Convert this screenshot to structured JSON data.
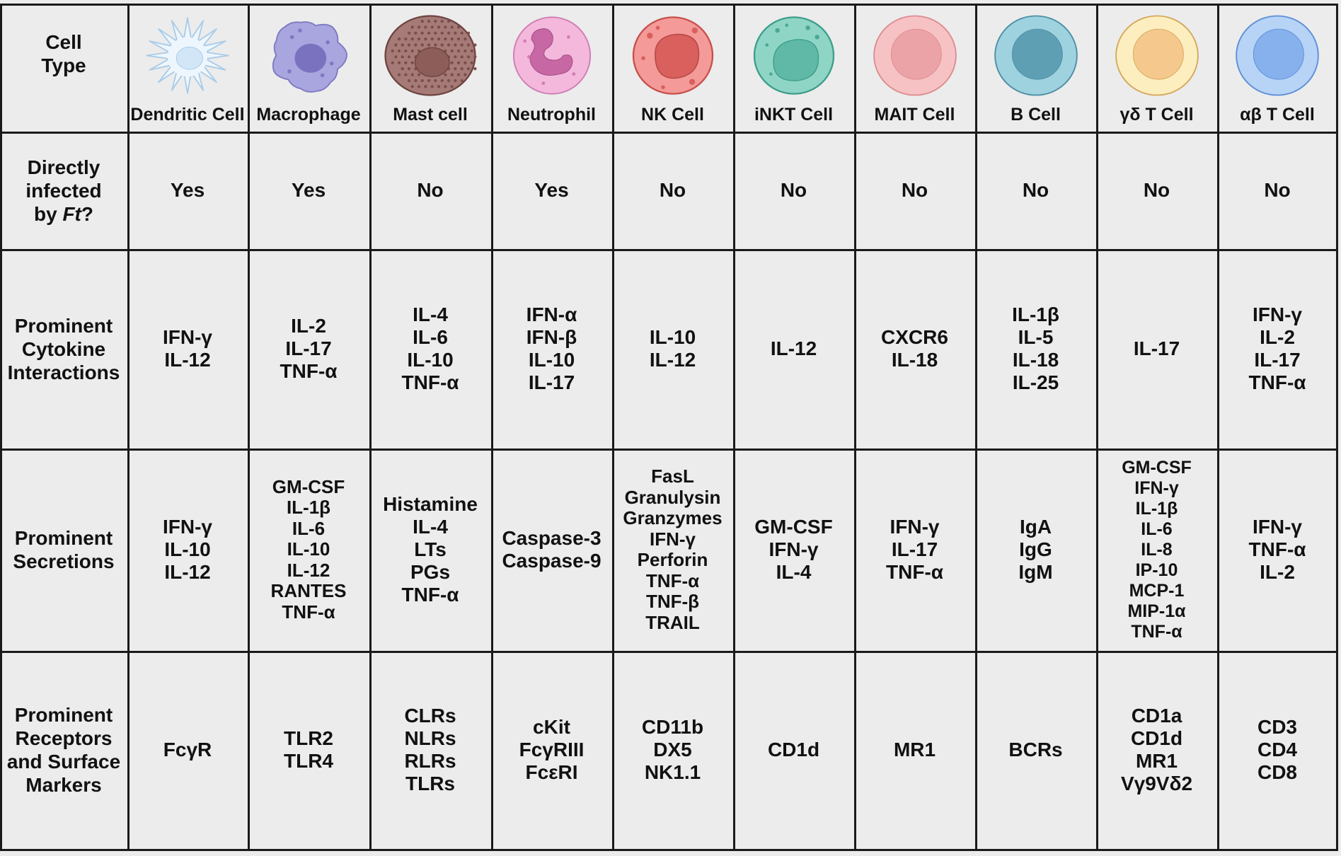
{
  "header_row_label": [
    "Cell",
    "Type"
  ],
  "cell_types": [
    {
      "name": "Dendritic Cell",
      "icon": "dendritic-cell-icon",
      "colors": {
        "body": "#eef6fd",
        "outline": "#a9cce8",
        "nucleus": "#d2e6f7"
      }
    },
    {
      "name": "Macrophage",
      "icon": "macrophage-icon",
      "colors": {
        "body": "#a9a6df",
        "outline": "#7d79c3",
        "nucleus": "#7a72bf"
      }
    },
    {
      "name": "Mast cell",
      "icon": "mast-cell-icon",
      "colors": {
        "body": "#a67b77",
        "outline": "#6e4440",
        "nucleus": "#8c5d59"
      }
    },
    {
      "name": "Neutrophil",
      "icon": "neutrophil-icon",
      "colors": {
        "body": "#f3b8dc",
        "outline": "#cf7cb2",
        "nucleus": "#c767a3"
      }
    },
    {
      "name": "NK Cell",
      "icon": "nk-cell-icon",
      "colors": {
        "body": "#f49a98",
        "outline": "#c6504d",
        "nucleus": "#d9605d"
      }
    },
    {
      "name": "iNKT Cell",
      "icon": "inkt-cell-icon",
      "colors": {
        "body": "#8fd5c6",
        "outline": "#3d9e8a",
        "nucleus": "#5fb9a6"
      }
    },
    {
      "name": "MAIT Cell",
      "icon": "mait-cell-icon",
      "colors": {
        "body": "#f7c2c4",
        "outline": "#dc8c90",
        "nucleus": "#eca3a7"
      }
    },
    {
      "name": "B Cell",
      "icon": "b-cell-icon",
      "colors": {
        "body": "#9fd2df",
        "outline": "#4c8ea4",
        "nucleus": "#5e9fb4"
      }
    },
    {
      "name": "γδ T Cell",
      "icon": "gamma-delta-t-cell-icon",
      "colors": {
        "body": "#fdeec0",
        "outline": "#d4a85a",
        "nucleus": "#f5c98d"
      }
    },
    {
      "name": "αβ T Cell",
      "icon": "alpha-beta-t-cell-icon",
      "colors": {
        "body": "#b7d3f6",
        "outline": "#5c8fd8",
        "nucleus": "#86b1ec"
      }
    }
  ],
  "rows": [
    {
      "label_lines": [
        "Directly",
        "infected",
        "by Ft?"
      ],
      "label_italic": "Ft",
      "values": [
        [
          "Yes"
        ],
        [
          "Yes"
        ],
        [
          "No"
        ],
        [
          "Yes"
        ],
        [
          "No"
        ],
        [
          "No"
        ],
        [
          "No"
        ],
        [
          "No"
        ],
        [
          "No"
        ],
        [
          "No"
        ]
      ]
    },
    {
      "label_lines": [
        "Prominent",
        "Cytokine",
        "Interactions"
      ],
      "values": [
        [
          "IFN-γ",
          "IL-12"
        ],
        [
          "IL-2",
          "IL-17",
          "TNF-α"
        ],
        [
          "IL-4",
          "IL-6",
          "IL-10",
          "TNF-α"
        ],
        [
          "IFN-α",
          "IFN-β",
          "IL-10",
          "IL-17"
        ],
        [
          "IL-10",
          "IL-12"
        ],
        [
          "IL-12"
        ],
        [
          "CXCR6",
          "IL-18"
        ],
        [
          "IL-1β",
          "IL-5",
          "IL-18",
          "IL-25"
        ],
        [
          "IL-17"
        ],
        [
          "IFN-γ",
          "IL-2",
          "IL-17",
          "TNF-α"
        ]
      ]
    },
    {
      "label_lines": [
        "Prominent",
        "Secretions"
      ],
      "values": [
        [
          "IFN-γ",
          "IL-10",
          "IL-12"
        ],
        [
          "GM-CSF",
          "IL-1β",
          "IL-6",
          "IL-10",
          "IL-12",
          "RANTES",
          "TNF-α"
        ],
        [
          "Histamine",
          "IL-4",
          "LTs",
          "PGs",
          "TNF-α"
        ],
        [
          "Caspase-3",
          "Caspase-9"
        ],
        [
          "FasL",
          "Granulysin",
          "Granzymes",
          "IFN-γ",
          "Perforin",
          "TNF-α",
          "TNF-β",
          "TRAIL"
        ],
        [
          "GM-CSF",
          "IFN-γ",
          "IL-4"
        ],
        [
          "IFN-γ",
          "IL-17",
          "TNF-α"
        ],
        [
          "IgA",
          "IgG",
          "IgM"
        ],
        [
          "GM-CSF",
          "IFN-γ",
          "IL-1β",
          "IL-6",
          "IL-8",
          "IP-10",
          "MCP-1",
          "MIP-1α",
          "TNF-α"
        ],
        [
          "IFN-γ",
          "TNF-α",
          "IL-2"
        ]
      ]
    },
    {
      "label_lines": [
        "Prominent",
        "Receptors",
        "and Surface",
        "Markers"
      ],
      "values": [
        [
          "FcγR"
        ],
        [
          "TLR2",
          "TLR4"
        ],
        [
          "CLRs",
          "NLRs",
          "RLRs",
          "TLRs"
        ],
        [
          "cKit",
          "FcγRIII",
          "FcεRI"
        ],
        [
          "CD11b",
          "DX5",
          "NK1.1"
        ],
        [
          "CD1d"
        ],
        [
          "MR1"
        ],
        [
          "BCRs"
        ],
        [
          "CD1a",
          "CD1d",
          "MR1",
          "Vγ9Vδ2"
        ],
        [
          "CD3",
          "CD4",
          "CD8"
        ]
      ]
    }
  ]
}
